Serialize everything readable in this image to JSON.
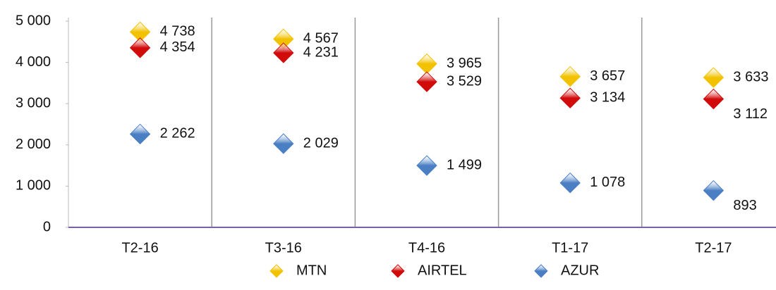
{
  "chart_data": {
    "type": "scatter",
    "categories": [
      "T2-16",
      "T3-16",
      "T4-16",
      "T1-17",
      "T2-17"
    ],
    "series": [
      {
        "name": "MTN",
        "color": "#f2c200",
        "values": [
          4738,
          4567,
          3965,
          3657,
          3633
        ],
        "value_labels": [
          "4 738",
          "4 567",
          "3 965",
          "3 657",
          "3 633"
        ]
      },
      {
        "name": "AIRTEL",
        "color": "#d10a0a",
        "values": [
          4354,
          4231,
          3529,
          3134,
          3112
        ],
        "value_labels": [
          "4 354",
          "4 231",
          "3 529",
          "3 134",
          "3 112"
        ]
      },
      {
        "name": "AZUR",
        "color": "#4a7fc4",
        "values": [
          2262,
          2029,
          1499,
          1078,
          893
        ],
        "value_labels": [
          "2 262",
          "2 029",
          "1 499",
          "1 078",
          "893"
        ]
      }
    ],
    "ylim": [
      0,
      5000
    ],
    "yticks": [
      0,
      {
        "value": 1000,
        "label": "1 000"
      },
      {
        "value": 2000,
        "label": "2 000"
      },
      {
        "value": 3000,
        "label": "3 000"
      },
      {
        "value": 4000,
        "label": "4 000"
      },
      {
        "value": 5000,
        "label": "5 000"
      }
    ],
    "legend": "bottom"
  }
}
